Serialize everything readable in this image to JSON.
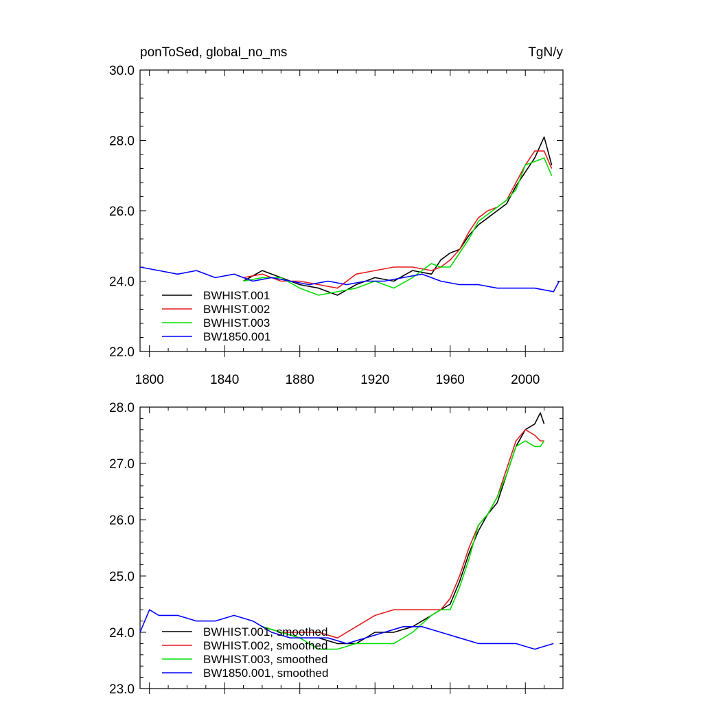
{
  "header": {
    "title_left": "ponToSed, global_no_ms",
    "title_right": "TgN/y"
  },
  "chart_data": [
    {
      "type": "line",
      "title": "ponToSed, global_no_ms",
      "units": "TgN/y",
      "xlim": [
        1795,
        2020
      ],
      "ylim": [
        22.0,
        30.0
      ],
      "yticks": [
        "22.0",
        "24.0",
        "26.0",
        "28.0",
        "30.0"
      ],
      "xticks": [
        "1800",
        "1840",
        "1880",
        "1920",
        "1960",
        "2000"
      ],
      "legend_placement": "lower-left",
      "series": [
        {
          "name": "BWHIST.001",
          "color": "#000000",
          "x": [
            1850,
            1860,
            1870,
            1880,
            1890,
            1900,
            1910,
            1920,
            1930,
            1940,
            1950,
            1955,
            1960,
            1965,
            1970,
            1975,
            1980,
            1985,
            1990,
            1995,
            2000,
            2005,
            2010,
            2014
          ],
          "y": [
            24.0,
            24.3,
            24.1,
            23.9,
            23.8,
            23.6,
            23.9,
            24.1,
            24.0,
            24.3,
            24.2,
            24.6,
            24.8,
            24.9,
            25.3,
            25.6,
            25.8,
            26.0,
            26.2,
            26.7,
            27.1,
            27.5,
            28.1,
            27.3
          ]
        },
        {
          "name": "BWHIST.002",
          "color": "#e31a1c",
          "x": [
            1850,
            1860,
            1870,
            1880,
            1890,
            1900,
            1910,
            1920,
            1930,
            1940,
            1950,
            1955,
            1960,
            1965,
            1970,
            1975,
            1980,
            1985,
            1990,
            1995,
            2000,
            2005,
            2010,
            2014
          ],
          "y": [
            24.1,
            24.2,
            24.0,
            24.0,
            23.9,
            23.8,
            24.2,
            24.3,
            24.4,
            24.4,
            24.3,
            24.4,
            24.6,
            24.9,
            25.4,
            25.8,
            26.0,
            26.1,
            26.3,
            26.8,
            27.3,
            27.7,
            27.7,
            27.2
          ]
        },
        {
          "name": "BWHIST.003",
          "color": "#00e000",
          "x": [
            1850,
            1860,
            1870,
            1880,
            1890,
            1900,
            1910,
            1920,
            1930,
            1940,
            1950,
            1955,
            1960,
            1965,
            1970,
            1975,
            1980,
            1985,
            1990,
            1995,
            2000,
            2005,
            2010,
            2014
          ],
          "y": [
            24.0,
            24.1,
            24.1,
            23.8,
            23.6,
            23.7,
            23.8,
            24.0,
            23.8,
            24.1,
            24.5,
            24.4,
            24.4,
            24.8,
            25.2,
            25.7,
            25.9,
            26.1,
            26.3,
            26.6,
            27.3,
            27.4,
            27.5,
            27.0
          ]
        },
        {
          "name": "BW1850.001",
          "color": "#0000ff",
          "x": [
            1795,
            1805,
            1815,
            1825,
            1835,
            1845,
            1855,
            1865,
            1875,
            1885,
            1895,
            1905,
            1915,
            1925,
            1935,
            1945,
            1955,
            1965,
            1975,
            1985,
            1995,
            2005,
            2015,
            2018
          ],
          "y": [
            24.4,
            24.3,
            24.2,
            24.3,
            24.1,
            24.2,
            24.0,
            24.1,
            24.0,
            23.9,
            24.0,
            23.9,
            24.0,
            24.0,
            24.1,
            24.2,
            24.0,
            23.9,
            23.9,
            23.8,
            23.8,
            23.8,
            23.7,
            24.0
          ]
        }
      ]
    },
    {
      "type": "line",
      "xlim": [
        1795,
        2020
      ],
      "ylim": [
        23.0,
        28.0
      ],
      "yticks": [
        "23.0",
        "24.0",
        "25.0",
        "26.0",
        "27.0",
        "28.0"
      ],
      "legend_placement": "lower-left",
      "series": [
        {
          "name": "BWHIST.001, smoothed",
          "color": "#000000",
          "x": [
            1860,
            1870,
            1880,
            1890,
            1900,
            1910,
            1920,
            1930,
            1940,
            1950,
            1955,
            1960,
            1965,
            1970,
            1975,
            1980,
            1985,
            1990,
            1995,
            2000,
            2005,
            2008,
            2010
          ],
          "y": [
            24.1,
            24.0,
            23.9,
            23.9,
            23.8,
            23.8,
            24.0,
            24.0,
            24.1,
            24.3,
            24.4,
            24.5,
            24.9,
            25.4,
            25.8,
            26.1,
            26.3,
            26.8,
            27.3,
            27.6,
            27.7,
            27.9,
            27.7
          ]
        },
        {
          "name": "BWHIST.002, smoothed",
          "color": "#e31a1c",
          "x": [
            1860,
            1870,
            1880,
            1890,
            1900,
            1910,
            1920,
            1930,
            1940,
            1950,
            1955,
            1960,
            1965,
            1970,
            1975,
            1980,
            1985,
            1990,
            1995,
            2000,
            2005,
            2008,
            2010
          ],
          "y": [
            24.1,
            24.0,
            24.0,
            24.0,
            23.9,
            24.1,
            24.3,
            24.4,
            24.4,
            24.4,
            24.4,
            24.6,
            25.0,
            25.5,
            25.9,
            26.1,
            26.4,
            26.9,
            27.4,
            27.6,
            27.5,
            27.4,
            27.4
          ]
        },
        {
          "name": "BWHIST.003, smoothed",
          "color": "#00e000",
          "x": [
            1860,
            1870,
            1880,
            1890,
            1900,
            1910,
            1920,
            1930,
            1940,
            1950,
            1955,
            1960,
            1965,
            1970,
            1975,
            1980,
            1985,
            1990,
            1995,
            2000,
            2005,
            2008,
            2010
          ],
          "y": [
            24.1,
            24.0,
            23.9,
            23.7,
            23.7,
            23.8,
            23.8,
            23.8,
            24.0,
            24.3,
            24.4,
            24.4,
            24.8,
            25.3,
            25.9,
            26.1,
            26.4,
            26.8,
            27.3,
            27.4,
            27.3,
            27.3,
            27.4
          ]
        },
        {
          "name": "BW1850.001, smoothed",
          "color": "#0000ff",
          "x": [
            1795,
            1800,
            1805,
            1815,
            1825,
            1835,
            1845,
            1855,
            1865,
            1875,
            1885,
            1895,
            1905,
            1915,
            1925,
            1935,
            1945,
            1955,
            1965,
            1975,
            1985,
            1995,
            2005,
            2015
          ],
          "y": [
            24.0,
            24.4,
            24.3,
            24.3,
            24.2,
            24.2,
            24.3,
            24.2,
            24.0,
            23.9,
            23.9,
            23.9,
            23.8,
            23.9,
            24.0,
            24.1,
            24.1,
            24.0,
            23.9,
            23.8,
            23.8,
            23.8,
            23.7,
            23.8
          ]
        }
      ]
    }
  ]
}
